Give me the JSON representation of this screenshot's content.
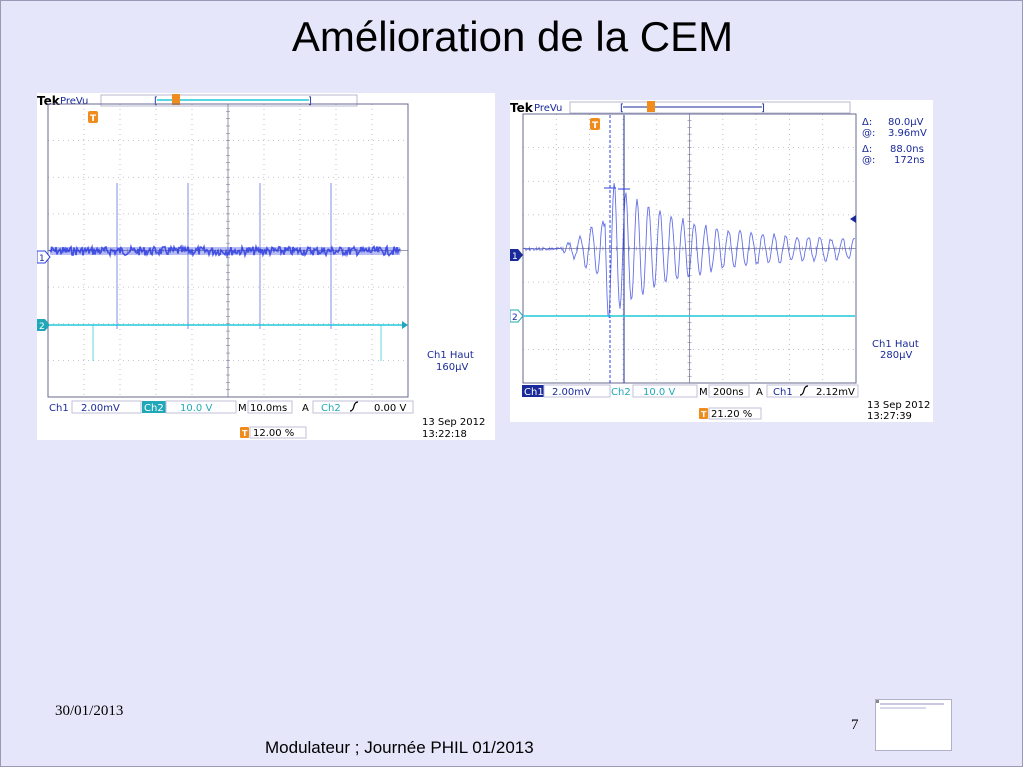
{
  "slide": {
    "title": "Amélioration de la CEM",
    "date": "30/01/2013",
    "footer": "Modulateur ; Journée PHIL 01/2013",
    "page_number": "7"
  },
  "scope1": {
    "brand": "Tek",
    "mode": "PreVu",
    "ch1_label": "Ch1",
    "ch1_scale": "2.00mV",
    "ch2_label": "Ch2",
    "ch2_scale": "10.0 V",
    "timebase_label": "M",
    "timebase": "10.0ms",
    "trigger_label": "A",
    "trigger_source": "Ch2",
    "trigger_level": "0.00 V",
    "trigger_position": "12.00 %",
    "ch1_note_line1": "Ch1 Haut",
    "ch1_note_line2": "160μV",
    "date": "13 Sep  2012",
    "time": "13:22:18",
    "marker_ch1": "1",
    "marker_ch2": "2",
    "trigger_marker": "T"
  },
  "scope2": {
    "brand": "Tek",
    "mode": "PreVu",
    "ch1_label": "Ch1",
    "ch1_scale": "2.00mV",
    "ch2_label": "Ch2",
    "ch2_scale": "10.0 V",
    "timebase_label": "M",
    "timebase": "200ns",
    "trigger_label": "A",
    "trigger_source": "Ch1",
    "trigger_level": "2.12mV",
    "trigger_position": "21.20 %",
    "cursor_dv_label": "Δ:",
    "cursor_dv": "80.0μV",
    "cursor_v_label": "@:",
    "cursor_v": "3.96mV",
    "cursor_dt_label": "Δ:",
    "cursor_dt": "88.0ns",
    "cursor_t_label": "@:",
    "cursor_t": "172ns",
    "ch1_note_line1": "Ch1 Haut",
    "ch1_note_line2": "280μV",
    "date": "13 Sep  2012",
    "time": "13:27:39",
    "marker_ch1": "1",
    "marker_ch2": "2",
    "trigger_marker": "T"
  },
  "colors": {
    "ch1": "#3040e0",
    "ch2": "#20c8d8",
    "text": "#1a2a9a",
    "trigger": "#f08c1c"
  }
}
